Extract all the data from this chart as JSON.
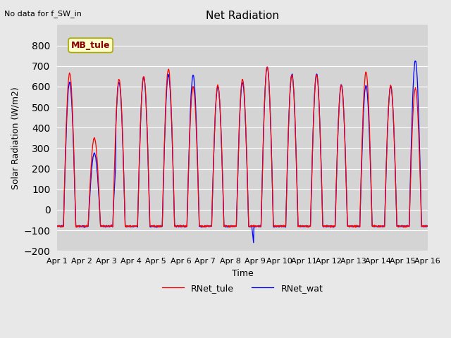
{
  "title": "Net Radiation",
  "xlabel": "Time",
  "ylabel": "Solar Radiation (W/m2)",
  "note": "No data for f_SW_in",
  "legend_labels": [
    "RNet_tule",
    "RNet_wat"
  ],
  "legend_colors": [
    "#ff0000",
    "#0000ff"
  ],
  "ylim": [
    -200,
    900
  ],
  "yticks": [
    -200,
    -100,
    0,
    100,
    200,
    300,
    400,
    500,
    600,
    700,
    800
  ],
  "xtick_labels": [
    "Apr 1",
    "Apr 2",
    "Apr 3",
    "Apr 4",
    "Apr 5",
    "Apr 6",
    "Apr 7",
    "Apr 8",
    "Apr 9",
    "Apr 10",
    "Apr 11",
    "Apr 12",
    "Apr 13",
    "Apr 14",
    "Apr 15",
    "Apr 16"
  ],
  "bg_color": "#e8e8e8",
  "plot_bg_color": "#d4d4d4",
  "station_label": "MB_tule",
  "days": 15,
  "points_per_day": 96,
  "day_peaks_tule": [
    665,
    350,
    635,
    650,
    685,
    600,
    605,
    635,
    695,
    655,
    655,
    605,
    670,
    605,
    590
  ],
  "day_peaks_wat": [
    620,
    275,
    620,
    645,
    655,
    655,
    600,
    620,
    695,
    660,
    660,
    610,
    605,
    600,
    725
  ]
}
